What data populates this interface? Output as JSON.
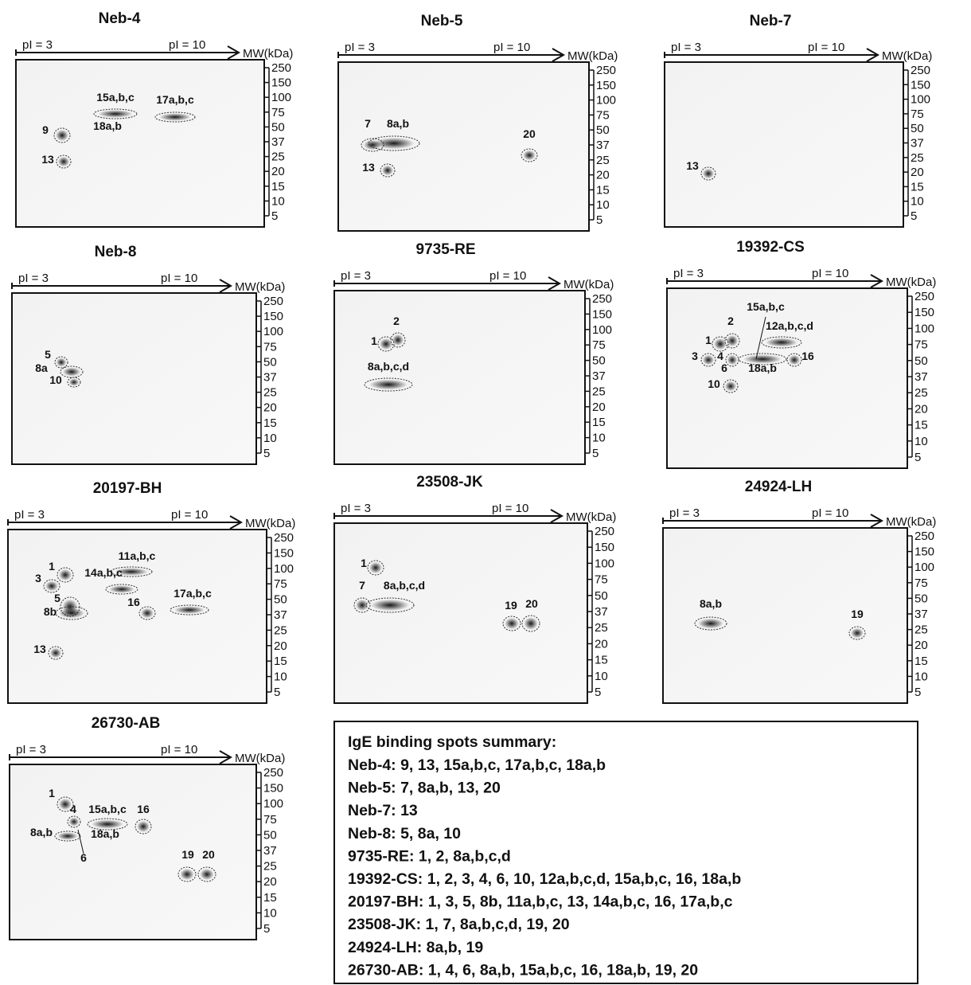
{
  "axis": {
    "pi_start": "pI = 3",
    "pi_end": "pI = 10",
    "mw_label": "MW(kDa)",
    "mw_ticks": [
      250,
      150,
      100,
      75,
      50,
      37,
      25,
      20,
      15,
      10,
      5
    ]
  },
  "panels": [
    {
      "title": "Neb-4",
      "spots": [
        {
          "label": "9"
        },
        {
          "label": "13"
        },
        {
          "label": "15a,b,c"
        },
        {
          "label": "18a,b"
        },
        {
          "label": "17a,b,c"
        }
      ]
    },
    {
      "title": "Neb-5",
      "spots": [
        {
          "label": "7"
        },
        {
          "label": "8a,b"
        },
        {
          "label": "13"
        },
        {
          "label": "20"
        }
      ]
    },
    {
      "title": "Neb-7",
      "spots": [
        {
          "label": "13"
        }
      ]
    },
    {
      "title": "Neb-8",
      "spots": [
        {
          "label": "5"
        },
        {
          "label": "8a"
        },
        {
          "label": "10"
        }
      ]
    },
    {
      "title": "9735-RE",
      "spots": [
        {
          "label": "1"
        },
        {
          "label": "2"
        },
        {
          "label": "8a,b,c,d"
        }
      ]
    },
    {
      "title": "19392-CS",
      "spots": [
        {
          "label": "1"
        },
        {
          "label": "2"
        },
        {
          "label": "3"
        },
        {
          "label": "4"
        },
        {
          "label": "6"
        },
        {
          "label": "10"
        },
        {
          "label": "15a,b,c"
        },
        {
          "label": "18a,b"
        },
        {
          "label": "12a,b,c,d"
        },
        {
          "label": "16"
        }
      ]
    },
    {
      "title": "20197-BH",
      "spots": [
        {
          "label": "1"
        },
        {
          "label": "3"
        },
        {
          "label": "5"
        },
        {
          "label": "8b"
        },
        {
          "label": "11a,b,c"
        },
        {
          "label": "14a,b,c"
        },
        {
          "label": "16"
        },
        {
          "label": "17a,b,c"
        },
        {
          "label": "13"
        }
      ]
    },
    {
      "title": "23508-JK",
      "spots": [
        {
          "label": "1"
        },
        {
          "label": "7"
        },
        {
          "label": "8a,b,c,d"
        },
        {
          "label": "19"
        },
        {
          "label": "20"
        }
      ]
    },
    {
      "title": "24924-LH",
      "spots": [
        {
          "label": "8a,b"
        },
        {
          "label": "19"
        }
      ]
    },
    {
      "title": "26730-AB",
      "spots": [
        {
          "label": "1"
        },
        {
          "label": "4"
        },
        {
          "label": "15a,b,c"
        },
        {
          "label": "16"
        },
        {
          "label": "8a,b"
        },
        {
          "label": "18a,b"
        },
        {
          "label": "6"
        },
        {
          "label": "19"
        },
        {
          "label": "20"
        }
      ]
    }
  ],
  "summary": {
    "title": "IgE binding spots summary:",
    "lines": [
      "Neb-4: 9, 13, 15a,b,c, 17a,b,c, 18a,b",
      "Neb-5: 7, 8a,b, 13, 20",
      "Neb-7: 13",
      "Neb-8: 5, 8a, 10",
      "9735-RE: 1, 2, 8a,b,c,d",
      "19392-CS: 1, 2, 3, 4, 6, 10, 12a,b,c,d, 15a,b,c, 16, 18a,b",
      "20197-BH: 1, 3, 5, 8b, 11a,b,c, 13, 14a,b,c, 16, 17a,b,c",
      "23508-JK: 1, 7, 8a,b,c,d, 19, 20",
      "24924-LH: 8a,b, 19",
      "26730-AB: 1, 4, 6, 8a,b, 15a,b,c, 16, 18a,b, 19, 20"
    ]
  }
}
